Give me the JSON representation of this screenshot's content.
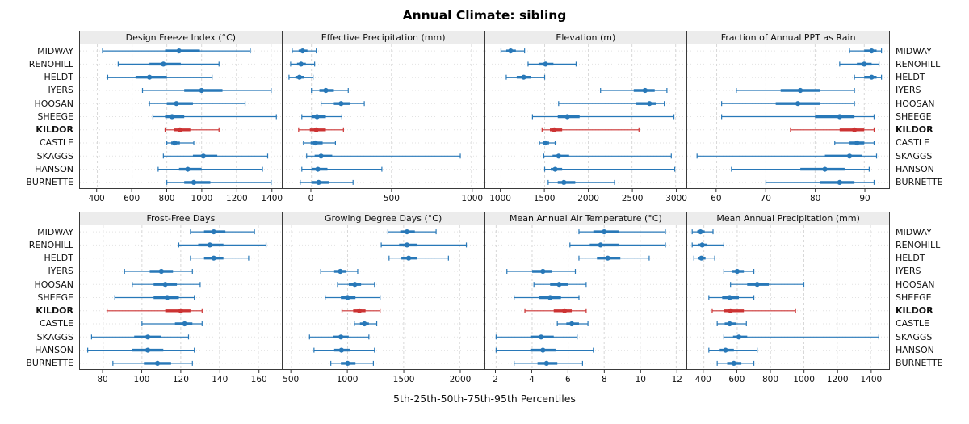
{
  "title": "Annual Climate: sibling",
  "chart_data": {
    "type": "dotplot-intervals",
    "caption": "5th-25th-50th-75th-95th Percentiles",
    "percentiles": [
      5,
      25,
      50,
      75,
      95
    ],
    "stations": [
      "MIDWAY",
      "RENOHILL",
      "HELDT",
      "IYERS",
      "HOOSAN",
      "SHEEGE",
      "KILDOR",
      "CASTLE",
      "SKAGGS",
      "HANSON",
      "BURNETTE"
    ],
    "highlight_station": "KILDOR",
    "colors": {
      "normal": "#2878b8",
      "highlight": "#cc3333"
    },
    "layout": {
      "rows": 2,
      "cols": 4,
      "grid": "dashed",
      "legend": "none"
    },
    "panels": [
      {
        "title": "Design Freeze Index (°C)",
        "xlim": [
          300,
          1460
        ],
        "ticks": [
          400,
          600,
          800,
          1000,
          1200,
          1400
        ],
        "values": {
          "MIDWAY": [
            430,
            790,
            870,
            990,
            1280
          ],
          "RENOHILL": [
            520,
            700,
            780,
            880,
            1100
          ],
          "HELDT": [
            460,
            620,
            700,
            800,
            1060
          ],
          "IYERS": [
            660,
            900,
            1000,
            1120,
            1400
          ],
          "HOOSAN": [
            700,
            800,
            855,
            950,
            1250
          ],
          "SHEEGE": [
            720,
            790,
            830,
            900,
            1430
          ],
          "KILDOR": [
            790,
            840,
            875,
            935,
            1100
          ],
          "CASTLE": [
            800,
            825,
            845,
            875,
            955
          ],
          "SKAGGS": [
            780,
            950,
            1010,
            1090,
            1380
          ],
          "HANSON": [
            750,
            870,
            920,
            1000,
            1350
          ],
          "BURNETTE": [
            800,
            900,
            955,
            1050,
            1400
          ]
        }
      },
      {
        "title": "Effective Precipitation (mm)",
        "xlim": [
          -180,
          1080
        ],
        "ticks": [
          0,
          500,
          1000
        ],
        "values": {
          "MIDWAY": [
            -120,
            -80,
            -55,
            -25,
            30
          ],
          "RENOHILL": [
            -130,
            -90,
            -65,
            -35,
            20
          ],
          "HELDT": [
            -140,
            -100,
            -75,
            -45,
            10
          ],
          "IYERS": [
            0,
            50,
            90,
            140,
            230
          ],
          "HOOSAN": [
            60,
            140,
            185,
            240,
            330
          ],
          "SHEEGE": [
            -60,
            0,
            35,
            90,
            190
          ],
          "KILDOR": [
            -80,
            -10,
            30,
            90,
            200
          ],
          "CASTLE": [
            -50,
            -5,
            25,
            70,
            150
          ],
          "SKAGGS": [
            -30,
            20,
            60,
            130,
            930
          ],
          "HANSON": [
            -60,
            0,
            40,
            100,
            440
          ],
          "BURNETTE": [
            -70,
            0,
            45,
            110,
            260
          ]
        }
      },
      {
        "title": "Elevation (m)",
        "xlim": [
          820,
          3130
        ],
        "ticks": [
          1000,
          1500,
          2000,
          2500,
          3000
        ],
        "values": {
          "MIDWAY": [
            1000,
            1060,
            1110,
            1170,
            1270
          ],
          "RENOHILL": [
            1310,
            1430,
            1510,
            1600,
            1860
          ],
          "HELDT": [
            1060,
            1180,
            1260,
            1340,
            1500
          ],
          "IYERS": [
            2140,
            2520,
            2650,
            2760,
            2900
          ],
          "HOOSAN": [
            1660,
            2550,
            2700,
            2780,
            2870
          ],
          "SHEEGE": [
            1360,
            1650,
            1760,
            1900,
            2980
          ],
          "KILDOR": [
            1470,
            1560,
            1610,
            1700,
            2580
          ],
          "CASTLE": [
            1440,
            1480,
            1510,
            1550,
            1620
          ],
          "SKAGGS": [
            1490,
            1590,
            1660,
            1780,
            2950
          ],
          "HANSON": [
            1500,
            1570,
            1620,
            1700,
            2990
          ],
          "BURNETTE": [
            1540,
            1650,
            1720,
            1850,
            2300
          ]
        }
      },
      {
        "title": "Fraction of Annual PPT as Rain",
        "xlim": [
          54,
          95
        ],
        "ticks": [
          60,
          70,
          80,
          90
        ],
        "values": {
          "MIDWAY": [
            87,
            90,
            91.5,
            92.5,
            93.5
          ],
          "RENOHILL": [
            85,
            88.5,
            90,
            91.5,
            93
          ],
          "HELDT": [
            88,
            90,
            91.5,
            92.5,
            93.5
          ],
          "IYERS": [
            64,
            73,
            77,
            81,
            88
          ],
          "HOOSAN": [
            61,
            72,
            76.5,
            81,
            88
          ],
          "SHEEGE": [
            61,
            80,
            85,
            88,
            92
          ],
          "KILDOR": [
            75,
            85,
            88,
            90,
            92
          ],
          "CASTLE": [
            84,
            87,
            88.5,
            90,
            92
          ],
          "SKAGGS": [
            56,
            82,
            87,
            89.5,
            92.5
          ],
          "HANSON": [
            63,
            77,
            82,
            86,
            91
          ],
          "BURNETTE": [
            70,
            81,
            85,
            88,
            92
          ]
        }
      },
      {
        "title": "Frost-Free Days",
        "xlim": [
          68,
          172
        ],
        "ticks": [
          80,
          100,
          120,
          140,
          160
        ],
        "values": {
          "MIDWAY": [
            125,
            132,
            137,
            143,
            158
          ],
          "RENOHILL": [
            119,
            129,
            135,
            142,
            164
          ],
          "HELDT": [
            125,
            132,
            137,
            142,
            155
          ],
          "IYERS": [
            91,
            104,
            110,
            116,
            126
          ],
          "HOOSAN": [
            95,
            106,
            112,
            118,
            130
          ],
          "SHEEGE": [
            86,
            106,
            113,
            119,
            127
          ],
          "KILDOR": [
            82,
            112,
            120,
            125,
            131
          ],
          "CASTLE": [
            100,
            117,
            122,
            126,
            131
          ],
          "SKAGGS": [
            74,
            96,
            103,
            110,
            124
          ],
          "HANSON": [
            72,
            95,
            103,
            111,
            127
          ],
          "BURNETTE": [
            85,
            101,
            108,
            115,
            126
          ]
        }
      },
      {
        "title": "Growing Degree Days (°C)",
        "xlim": [
          420,
          2220
        ],
        "ticks": [
          500,
          1000,
          1500,
          2000
        ],
        "values": {
          "MIDWAY": [
            1360,
            1470,
            1530,
            1600,
            1790
          ],
          "RENOHILL": [
            1300,
            1460,
            1530,
            1620,
            2060
          ],
          "HELDT": [
            1370,
            1480,
            1545,
            1620,
            1900
          ],
          "IYERS": [
            760,
            880,
            935,
            990,
            1090
          ],
          "HOOSAN": [
            910,
            1010,
            1065,
            1120,
            1240
          ],
          "SHEEGE": [
            800,
            940,
            1000,
            1070,
            1290
          ],
          "KILDOR": [
            950,
            1050,
            1105,
            1160,
            1290
          ],
          "CASTLE": [
            1060,
            1110,
            1150,
            1190,
            1260
          ],
          "SKAGGS": [
            660,
            870,
            940,
            1010,
            1190
          ],
          "HANSON": [
            700,
            880,
            945,
            1020,
            1240
          ],
          "BURNETTE": [
            850,
            940,
            1000,
            1070,
            1230
          ]
        }
      },
      {
        "title": "Mean Annual Air Temperature (°C)",
        "xlim": [
          1.4,
          12.6
        ],
        "ticks": [
          2,
          4,
          6,
          8,
          10,
          12
        ],
        "values": {
          "MIDWAY": [
            6.6,
            7.4,
            8.0,
            8.8,
            11.4
          ],
          "RENOHILL": [
            6.1,
            7.2,
            7.8,
            8.8,
            11.4
          ],
          "HELDT": [
            6.6,
            7.6,
            8.2,
            8.9,
            10.5
          ],
          "IYERS": [
            2.6,
            4.0,
            4.6,
            5.1,
            6.4
          ],
          "HOOSAN": [
            4.1,
            5.0,
            5.5,
            6.0,
            7.0
          ],
          "SHEEGE": [
            3.0,
            4.4,
            5.0,
            5.6,
            6.6
          ],
          "KILDOR": [
            3.6,
            5.2,
            5.8,
            6.2,
            7.0
          ],
          "CASTLE": [
            5.4,
            5.9,
            6.2,
            6.6,
            7.1
          ],
          "SKAGGS": [
            2.0,
            3.9,
            4.5,
            5.2,
            6.5
          ],
          "HANSON": [
            2.0,
            3.9,
            4.6,
            5.3,
            7.4
          ],
          "BURNETTE": [
            3.0,
            4.3,
            4.8,
            5.4,
            6.8
          ]
        }
      },
      {
        "title": "Mean Annual Precipitation (mm)",
        "xlim": [
          300,
          1510
        ],
        "ticks": [
          400,
          600,
          800,
          1000,
          1200,
          1400
        ],
        "values": {
          "MIDWAY": [
            330,
            360,
            380,
            405,
            455
          ],
          "RENOHILL": [
            330,
            365,
            390,
            420,
            520
          ],
          "HELDT": [
            340,
            365,
            385,
            410,
            465
          ],
          "IYERS": [
            520,
            570,
            600,
            640,
            700
          ],
          "HOOSAN": [
            560,
            660,
            720,
            790,
            1000
          ],
          "SHEEGE": [
            430,
            510,
            555,
            610,
            700
          ],
          "KILDOR": [
            450,
            520,
            560,
            640,
            950
          ],
          "CASTLE": [
            480,
            525,
            555,
            595,
            655
          ],
          "SKAGGS": [
            520,
            575,
            610,
            660,
            1450
          ],
          "HANSON": [
            430,
            495,
            530,
            580,
            720
          ],
          "BURNETTE": [
            480,
            540,
            580,
            625,
            700
          ]
        }
      }
    ]
  }
}
